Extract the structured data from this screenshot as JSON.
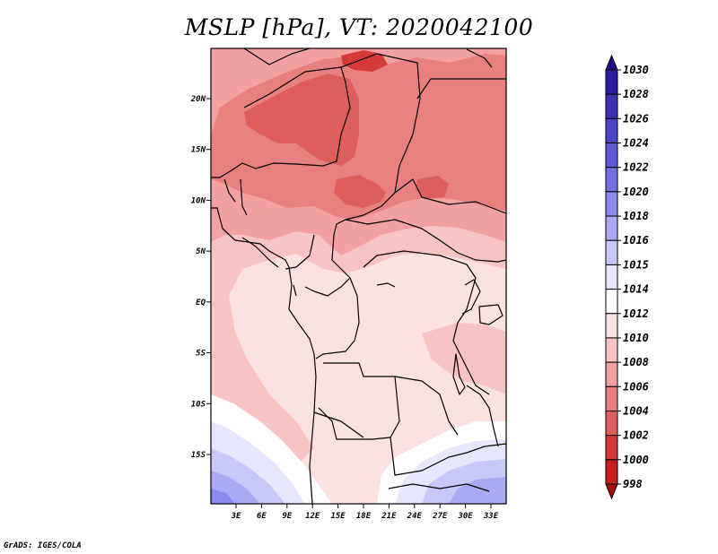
{
  "title": "MSLP [hPa], VT: 2020042100",
  "footer": "GrADS: IGES/COLA",
  "map": {
    "type": "filled-contour-map",
    "variable": "MSLP",
    "units": "hPa",
    "valid_time": "2020042100",
    "region": "Central Africa",
    "lat_labels": [
      "20N",
      "15N",
      "10N",
      "5N",
      "EQ",
      "5S",
      "10S",
      "15S"
    ],
    "lat_values": [
      20,
      15,
      10,
      5,
      0,
      -5,
      -10,
      -15
    ],
    "lon_labels": [
      "3E",
      "6E",
      "9E",
      "12E",
      "15E",
      "18E",
      "21E",
      "24E",
      "27E",
      "30E",
      "33E"
    ],
    "lon_values": [
      3,
      6,
      9,
      12,
      15,
      18,
      21,
      24,
      27,
      30,
      33
    ]
  },
  "colorbar": {
    "levels": [
      "1030",
      "1028",
      "1026",
      "1024",
      "1022",
      "1020",
      "1018",
      "1016",
      "1015",
      "1014",
      "1012",
      "1010",
      "1008",
      "1006",
      "1004",
      "1002",
      "1000",
      "998"
    ],
    "colors": [
      "#1e0a8c",
      "#2d1ea0",
      "#3c32b4",
      "#4b46c8",
      "#5f5ad7",
      "#7370e4",
      "#8c8aee",
      "#aaaaf4",
      "#c8c8f8",
      "#e6e6fc",
      "#ffffff",
      "#fce1e1",
      "#f8c3c3",
      "#f2a0a0",
      "#e88080",
      "#de5e5e",
      "#d43a3a",
      "#c81e1e",
      "#a80c0c"
    ]
  }
}
